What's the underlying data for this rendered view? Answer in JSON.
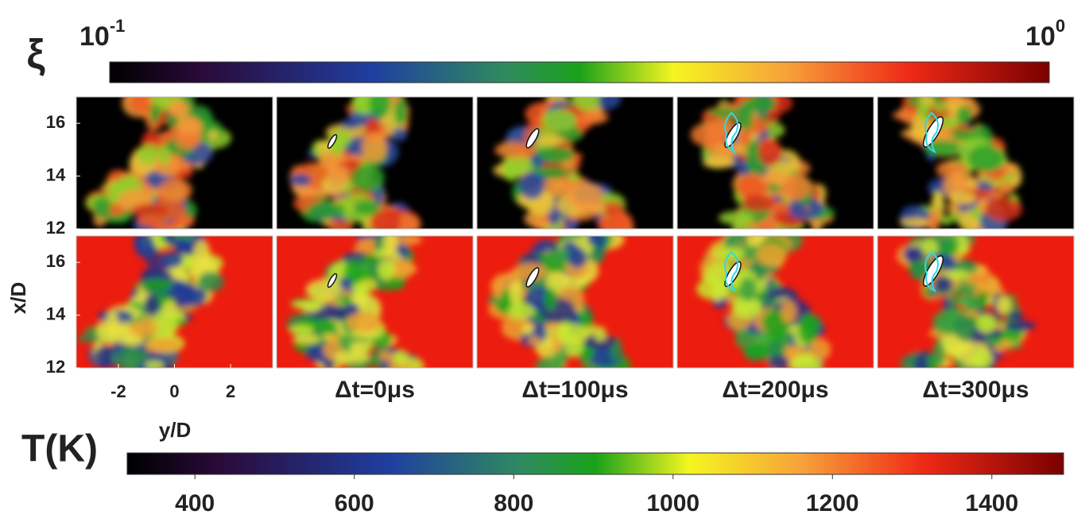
{
  "xi_colorbar": {
    "symbol": "ξ",
    "min_label": {
      "base": "10",
      "exponent": "-1"
    },
    "max_label": {
      "base": "10",
      "exponent": "0"
    }
  },
  "T_colorbar": {
    "label": "T(K)",
    "lim": [
      315,
      1490
    ],
    "ticks": [
      400,
      600,
      800,
      1000,
      1200,
      1400
    ]
  },
  "panels": {
    "x_axis_label": "y/D",
    "y_axis_label": "x/D",
    "xlim": [
      -3.5,
      3.5
    ],
    "xticks": [
      -2,
      0,
      2
    ],
    "ylim": [
      12,
      17
    ],
    "yticks": [
      12,
      14,
      16
    ],
    "time_labels": [
      "Δt=0μs",
      "Δt=100μs",
      "Δt=200μs",
      "Δt=300μs"
    ]
  }
}
